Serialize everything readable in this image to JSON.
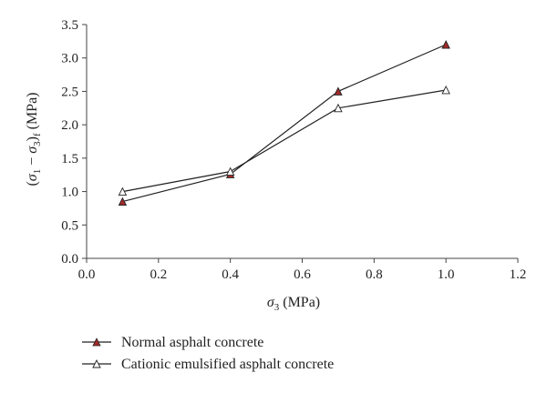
{
  "chart_data": {
    "type": "line",
    "title": "",
    "xlabel": {
      "symbol": "σ",
      "subscript": "3",
      "unit": " (MPa)"
    },
    "ylabel": {
      "open": "(",
      "s1": "σ",
      "sub1": "1",
      "minus": " − ",
      "s3": "σ",
      "sub3": "3",
      "close": ")",
      "subf": "f",
      "unit": " (MPa)"
    },
    "xlim": [
      0.0,
      1.2
    ],
    "ylim": [
      0.0,
      3.5
    ],
    "xticks": [
      "0.0",
      "0.2",
      "0.4",
      "0.6",
      "0.8",
      "1.0",
      "1.2"
    ],
    "yticks": [
      "0.0",
      "0.5",
      "1.0",
      "1.5",
      "2.0",
      "2.5",
      "3.0",
      "3.5"
    ],
    "grid": false,
    "legend_position": "bottom-left, below plot",
    "series": [
      {
        "name": "Normal asphalt concrete",
        "marker": "filled-triangle",
        "marker_color": "#a12a2a",
        "x": [
          0.1,
          0.4,
          0.7,
          1.0
        ],
        "y": [
          0.85,
          1.26,
          2.5,
          3.2
        ]
      },
      {
        "name": "Cationic emulsified asphalt concrete",
        "marker": "open-triangle",
        "marker_color": "#ffffff",
        "x": [
          0.1,
          0.4,
          0.7,
          1.0
        ],
        "y": [
          1.0,
          1.3,
          2.25,
          2.52
        ]
      }
    ]
  }
}
